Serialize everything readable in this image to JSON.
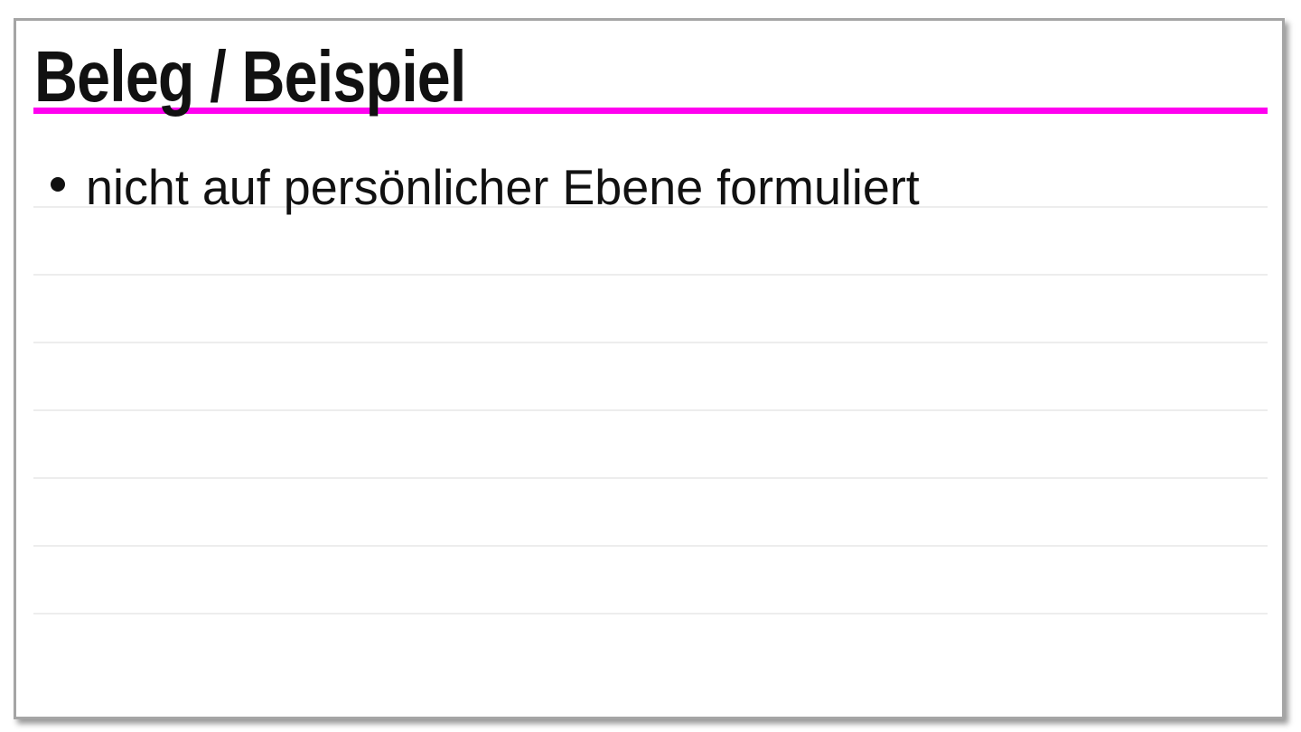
{
  "card": {
    "title": "Beleg / Beispiel",
    "title_underline_color": "#ff00f0",
    "border_color": "#a5a5a5",
    "text_color": "#111111",
    "bullets": [
      {
        "text": "nicht auf persönlicher Ebene formuliert"
      }
    ],
    "ruled_lines": {
      "count": 7,
      "color": "#ededed"
    }
  }
}
